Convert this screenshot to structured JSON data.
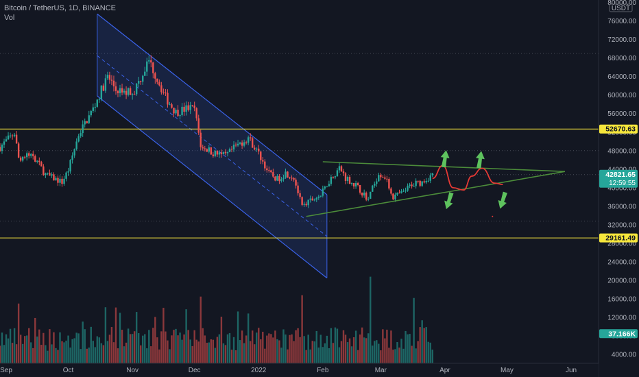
{
  "header": {
    "symbol": "Bitcoin / TetherUS, 1D, BINANCE",
    "volume_label": "Vol"
  },
  "currency": "USDT",
  "chart_data": {
    "type": "candlestick",
    "y_axis": {
      "ticks": [
        4000,
        8000,
        12000,
        16000,
        20000,
        24000,
        28000,
        32000,
        36000,
        40000,
        44000,
        48000,
        52000,
        56000,
        60000,
        64000,
        68000,
        72000,
        76000,
        80000
      ],
      "tick_labels": [
        "4000.00",
        "8000.00",
        "12000.00",
        "16000.00",
        "20000.00",
        "24000.00",
        "28000.00",
        "32000.00",
        "36000.00",
        "40000.00",
        "44000.00",
        "48000.00",
        "52000.00",
        "56000.00",
        "60000.00",
        "64000.00",
        "68000.00",
        "72000.00",
        "76000.00",
        "80000.00"
      ]
    },
    "x_axis": {
      "labels": [
        {
          "text": "Sep",
          "date": "2021-09-01"
        },
        {
          "text": "Oct",
          "date": "2021-10-01"
        },
        {
          "text": "Nov",
          "date": "2021-11-01"
        },
        {
          "text": "Dec",
          "date": "2021-12-01"
        },
        {
          "text": "2022",
          "date": "2022-01-01"
        },
        {
          "text": "Feb",
          "date": "2022-02-01"
        },
        {
          "text": "Mar",
          "date": "2022-03-01"
        },
        {
          "text": "Apr",
          "date": "2022-04-01"
        },
        {
          "text": "May",
          "date": "2022-05-01"
        },
        {
          "text": "Jun",
          "date": "2022-06-01"
        }
      ]
    },
    "price_path": [
      [
        "2021-08-29",
        48800
      ],
      [
        "2021-09-05",
        51800
      ],
      [
        "2021-09-07",
        46500
      ],
      [
        "2021-09-14",
        47000
      ],
      [
        "2021-09-20",
        42800
      ],
      [
        "2021-09-28",
        41200
      ],
      [
        "2021-10-01",
        43800
      ],
      [
        "2021-10-06",
        51500
      ],
      [
        "2021-10-13",
        57000
      ],
      [
        "2021-10-20",
        64000
      ],
      [
        "2021-10-24",
        61200
      ],
      [
        "2021-10-28",
        60500
      ],
      [
        "2021-11-02",
        61000
      ],
      [
        "2021-11-09",
        67500
      ],
      [
        "2021-11-12",
        64500
      ],
      [
        "2021-11-17",
        59500
      ],
      [
        "2021-11-22",
        56300
      ],
      [
        "2021-11-28",
        57200
      ],
      [
        "2021-12-01",
        57000
      ],
      [
        "2021-12-04",
        49200
      ],
      [
        "2021-12-10",
        47500
      ],
      [
        "2021-12-16",
        46800
      ],
      [
        "2021-12-21",
        48900
      ],
      [
        "2021-12-27",
        50800
      ],
      [
        "2022-01-01",
        47300
      ],
      [
        "2022-01-06",
        43100
      ],
      [
        "2022-01-10",
        41800
      ],
      [
        "2022-01-14",
        43200
      ],
      [
        "2022-01-18",
        42200
      ],
      [
        "2022-01-22",
        35800
      ],
      [
        "2022-01-26",
        37200
      ],
      [
        "2022-01-31",
        38400
      ],
      [
        "2022-02-04",
        41500
      ],
      [
        "2022-02-09",
        44300
      ],
      [
        "2022-02-12",
        42200
      ],
      [
        "2022-02-17",
        40500
      ],
      [
        "2022-02-23",
        37500
      ],
      [
        "2022-02-28",
        43200
      ],
      [
        "2022-03-03",
        42300
      ],
      [
        "2022-03-07",
        38000
      ],
      [
        "2022-03-12",
        39000
      ],
      [
        "2022-03-16",
        40800
      ],
      [
        "2022-03-21",
        41200
      ],
      [
        "2022-03-26",
        42821.65
      ]
    ],
    "volume_bars": 212,
    "volume_axis": {
      "ticks": [
        4000,
        8000,
        12000,
        16000,
        20000
      ],
      "tick_labels": [
        "4000.00",
        "8000.00",
        "12000.00",
        "16000.00",
        "20000.00"
      ]
    },
    "channel": {
      "upper": [
        [
          "2021-10-15",
          77500
        ],
        [
          "2022-02-03",
          38500
        ]
      ],
      "lower": [
        [
          "2021-10-15",
          59800
        ],
        [
          "2022-02-03",
          20500
        ]
      ],
      "midline": [
        [
          "2021-10-15",
          68500
        ],
        [
          "2022-02-03",
          29500
        ]
      ]
    },
    "triangle": {
      "upper": [
        [
          "2022-02-01",
          45600
        ],
        [
          "2022-05-29",
          43500
        ]
      ],
      "lower": [
        [
          "2022-01-24",
          33800
        ],
        [
          "2022-05-29",
          43500
        ]
      ]
    },
    "horizontal_levels": [
      {
        "price": 52670.63,
        "label": "52670.63",
        "color": "#f6e63c"
      },
      {
        "price": 29161.49,
        "label": "29161.49",
        "color": "#f6e63c"
      }
    ],
    "dotted_levels": [
      69000,
      48000,
      42821.65,
      32800
    ],
    "projection_path": [
      [
        "2022-03-26",
        42000
      ],
      [
        "2022-03-31",
        44800
      ],
      [
        "2022-04-05",
        40000
      ],
      [
        "2022-04-10",
        39500
      ],
      [
        "2022-04-14",
        42500
      ],
      [
        "2022-04-19",
        44200
      ],
      [
        "2022-04-25",
        41000
      ],
      [
        "2022-04-29",
        40700
      ]
    ],
    "arrows": [
      {
        "date": "2022-04-01",
        "price": 46200,
        "direction": "up"
      },
      {
        "date": "2022-04-18",
        "price": 46000,
        "direction": "up"
      },
      {
        "date": "2022-04-03",
        "price": 37200,
        "direction": "down"
      },
      {
        "date": "2022-04-29",
        "price": 37300,
        "direction": "down"
      }
    ],
    "price_labels": [
      {
        "text": "52670.63",
        "price": 52670.63,
        "bg": "#f6e63c",
        "fg": "#131722"
      },
      {
        "text": "42821.65",
        "price": 42821.65,
        "bg": "#26a69a",
        "fg": "#ffffff",
        "sub": "12:59:55"
      },
      {
        "text": "29161.49",
        "price": 29161.49,
        "bg": "#f6e63c",
        "fg": "#131722"
      },
      {
        "text": "37.166K",
        "volume": 8500,
        "bg": "#26a69a",
        "fg": "#ffffff"
      }
    ],
    "colors": {
      "up": "#26a69a",
      "down": "#ef5350",
      "channel": "#3a62e8",
      "triangle": "#4c8c3a",
      "projection": "#e53935",
      "arrow": "#5ec25e",
      "grid": "#363a45"
    }
  }
}
